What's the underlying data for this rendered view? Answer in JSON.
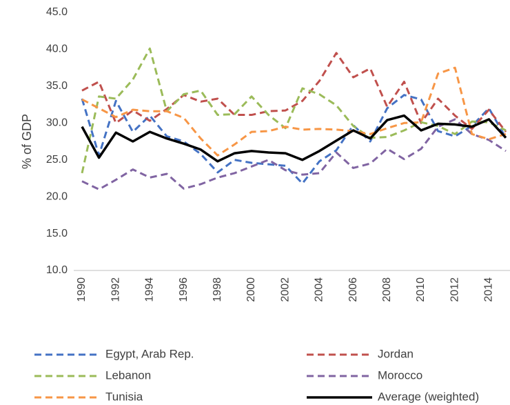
{
  "chart_data": {
    "type": "line",
    "y_label": "% of GDP",
    "categories": [
      "1990",
      null,
      "1992",
      null,
      "1994",
      null,
      "1996",
      null,
      "1998",
      null,
      "2000",
      null,
      "2002",
      null,
      "2004",
      null,
      "2006",
      null,
      "2008",
      null,
      "2010",
      null,
      "2012",
      null,
      "2014",
      null
    ],
    "ylim": [
      10,
      45
    ],
    "yticks": [
      {
        "value": 10,
        "label": "10.0"
      },
      {
        "value": 15,
        "label": "15.0"
      },
      {
        "value": 20,
        "label": "20.0"
      },
      {
        "value": 25,
        "label": "25.0"
      },
      {
        "value": 30,
        "label": "30.0"
      },
      {
        "value": 35,
        "label": "35.0"
      },
      {
        "value": 40,
        "label": "40.0"
      },
      {
        "value": 45,
        "label": "45.0"
      }
    ],
    "grid": false,
    "legend": "bottom",
    "series": [
      {
        "name": "Egypt, Arab Rep.",
        "color": "#4472c4",
        "dashed": true,
        "values": [
          33.3,
          25.6,
          33.0,
          28.8,
          31.0,
          28.2,
          27.5,
          25.8,
          23.3,
          25.0,
          24.6,
          24.4,
          24.2,
          21.8,
          24.8,
          26.3,
          29.7,
          27.5,
          32.0,
          33.8,
          33.2,
          28.9,
          28.2,
          29.6,
          32.0,
          28.0
        ]
      },
      {
        "name": "Jordan",
        "color": "#c0504d",
        "dashed": true,
        "values": [
          34.4,
          35.6,
          30.0,
          31.7,
          30.3,
          31.9,
          33.8,
          32.9,
          33.3,
          31.1,
          31.1,
          31.6,
          31.7,
          33.0,
          35.7,
          39.5,
          36.2,
          37.4,
          32.2,
          35.6,
          30.0,
          33.3,
          31.0,
          29.2,
          31.8,
          28.8
        ]
      },
      {
        "name": "Lebanon",
        "color": "#9bbb59",
        "dashed": true,
        "values": [
          23.2,
          33.6,
          33.3,
          35.9,
          40.1,
          31.6,
          33.9,
          34.4,
          31.1,
          31.2,
          33.6,
          31.1,
          29.3,
          34.7,
          33.9,
          32.4,
          29.6,
          28.0,
          28.1,
          29.0,
          30.1,
          29.6,
          28.5,
          30.2,
          30.1,
          29.0
        ]
      },
      {
        "name": "Morocco",
        "color": "#8064a2",
        "dashed": true,
        "values": [
          22.1,
          21.0,
          22.3,
          23.7,
          22.6,
          23.1,
          21.1,
          21.7,
          22.6,
          23.2,
          24.1,
          25.0,
          23.6,
          23.0,
          23.2,
          26.0,
          23.9,
          24.5,
          26.5,
          25.1,
          26.5,
          29.5,
          30.5,
          28.5,
          27.7,
          26.2
        ]
      },
      {
        "name": "Tunisia",
        "color": "#f79646",
        "dashed": true,
        "values": [
          33.2,
          32.0,
          30.8,
          31.8,
          31.6,
          31.6,
          30.7,
          27.9,
          25.6,
          27.1,
          28.8,
          28.9,
          29.5,
          29.1,
          29.2,
          29.1,
          28.9,
          28.5,
          29.3,
          30.0,
          30.1,
          36.7,
          37.5,
          28.5,
          27.8,
          28.5
        ]
      },
      {
        "name": "Average (weighted)",
        "color": "#000000",
        "dashed": false,
        "values": [
          29.5,
          25.3,
          28.7,
          27.5,
          28.8,
          27.9,
          27.2,
          26.4,
          24.8,
          25.9,
          26.2,
          26.0,
          25.9,
          25.0,
          26.2,
          27.6,
          29.0,
          27.9,
          30.4,
          31.0,
          29.0,
          29.9,
          29.8,
          29.5,
          30.5,
          28.0
        ]
      }
    ]
  }
}
